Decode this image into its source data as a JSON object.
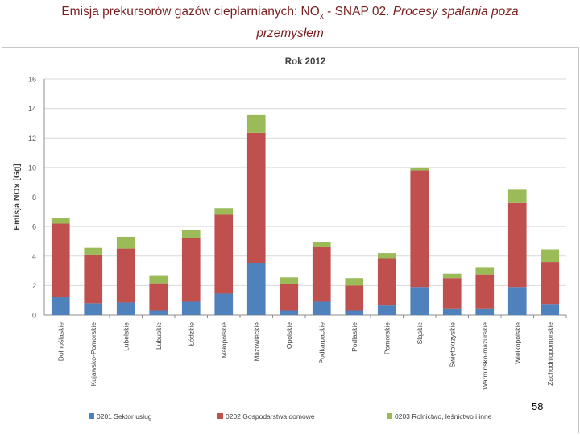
{
  "slide": {
    "title_main": "Emisja prekursorów gazów cieplarnianych:  NO",
    "title_sub": "x",
    "title_mid": " - SNAP 02. ",
    "title_italic_1": "Procesy spalania poza",
    "title_italic_2": "przemysłem",
    "page_number": "58"
  },
  "chart_data": {
    "type": "bar",
    "stacked": true,
    "title": "Rok 2012",
    "xlabel": "",
    "ylabel": "Emisja NOx [Gg]",
    "ylim": [
      0,
      16
    ],
    "yticks": [
      "0",
      "2",
      "4",
      "6",
      "8",
      "10",
      "12",
      "14",
      "16"
    ],
    "grid": true,
    "legend_position": "bottom",
    "categories": [
      "Dolnośląskie",
      "Kujawsko-Pomorskie",
      "Lubelskie",
      "Lubuskie",
      "Łódzkie",
      "Małopolskie",
      "Mazowieckie",
      "Opolskie",
      "Podkarpackie",
      "Podlaskie",
      "Pomorskie",
      "Śląskie",
      "Świętokrzyskie",
      "Warmińsko-mazurskie",
      "Wielkopolskie",
      "Zachodniopomorskie"
    ],
    "series": [
      {
        "name": "0201 Sektor usług",
        "color": "#4f81bd",
        "values": [
          1.2,
          0.8,
          0.85,
          0.3,
          0.9,
          1.45,
          3.5,
          0.3,
          0.9,
          0.3,
          0.65,
          1.9,
          0.45,
          0.45,
          1.9,
          0.75
        ]
      },
      {
        "name": "0202  Gospodarstwa domowe",
        "color": "#c0504d",
        "values": [
          5.0,
          3.3,
          3.65,
          1.85,
          4.3,
          5.35,
          8.85,
          1.8,
          3.7,
          1.7,
          3.2,
          7.9,
          2.05,
          2.3,
          5.7,
          2.85
        ]
      },
      {
        "name": "0203  Rolnictwo, leśnictwo i inne",
        "color": "#9bbb59",
        "values": [
          0.4,
          0.45,
          0.8,
          0.55,
          0.55,
          0.45,
          1.2,
          0.45,
          0.35,
          0.5,
          0.35,
          0.2,
          0.3,
          0.45,
          0.9,
          0.85
        ]
      }
    ]
  }
}
